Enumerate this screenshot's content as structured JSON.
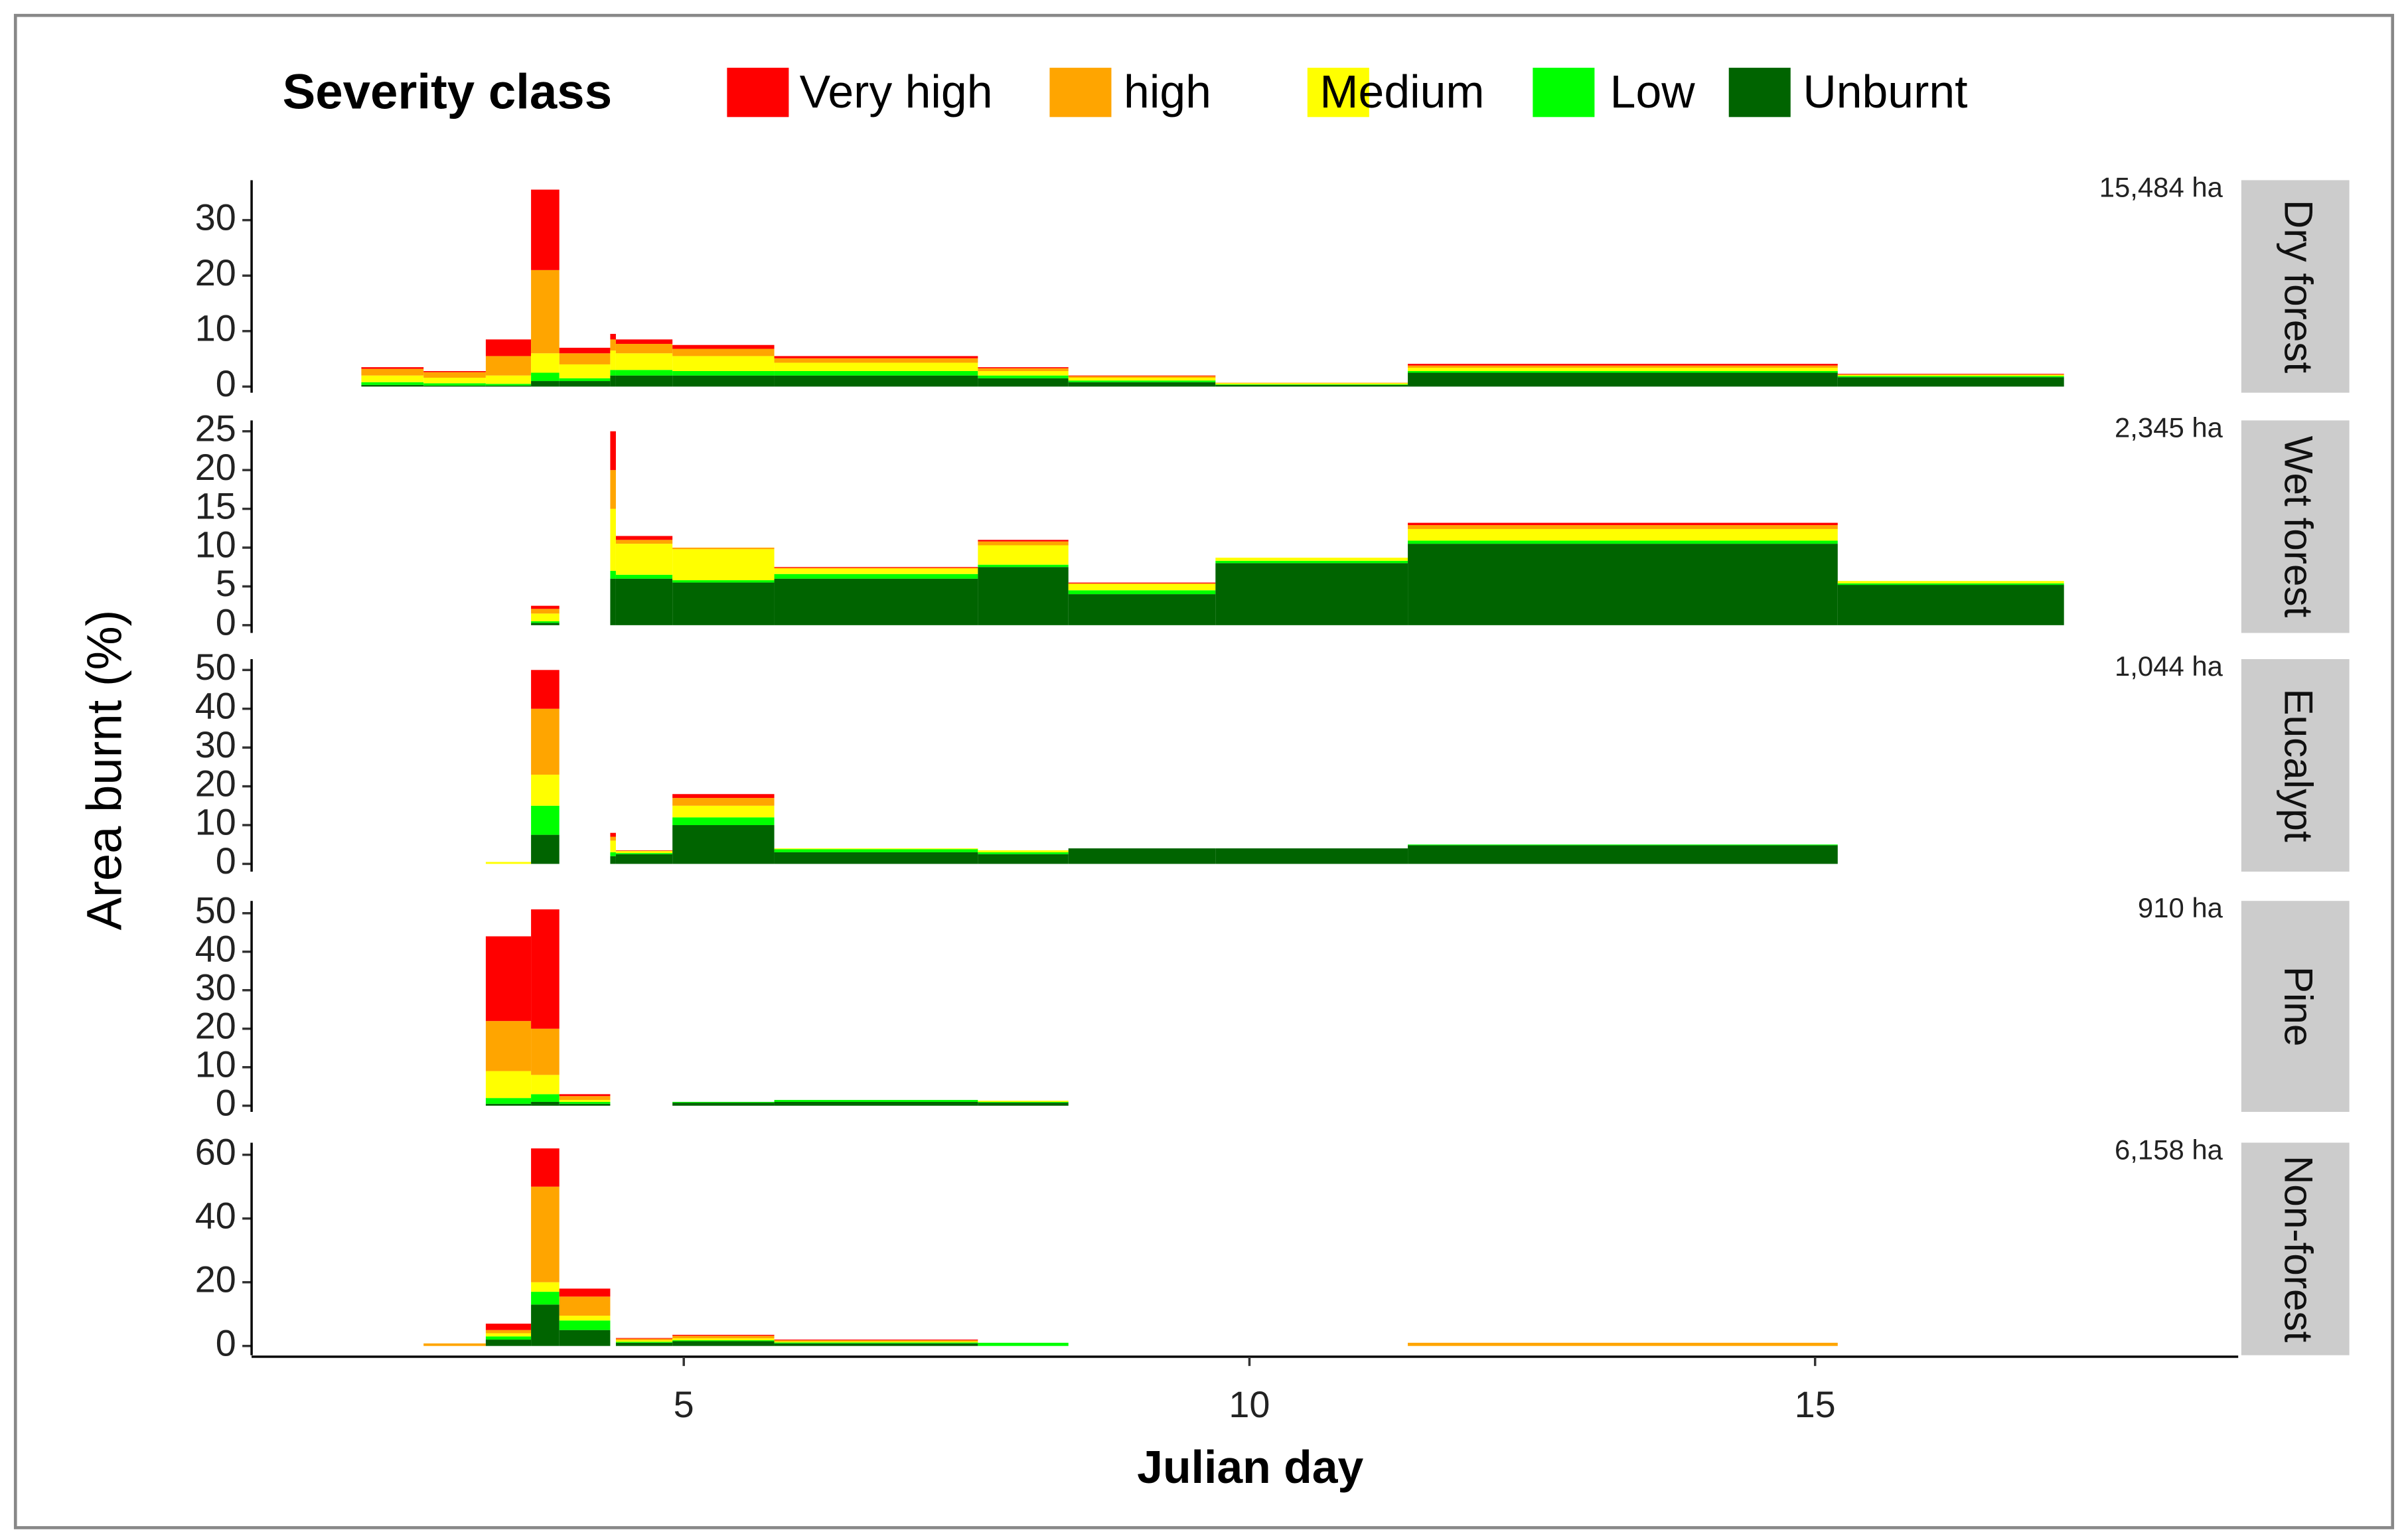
{
  "chart_data": {
    "type": "histogram",
    "legend_title": "Severity class",
    "xlabel": "Julian day",
    "ylabel": "Area burnt (%)",
    "xlim": [
      1.18,
      18.74
    ],
    "xticks": [
      5,
      10,
      15
    ],
    "bins": [
      2.15,
      2.7,
      3.25,
      3.65,
      3.9,
      4.35,
      4.4,
      4.9,
      5.8,
      7.6,
      8.4,
      9.7,
      11.4,
      15.2,
      17.2
    ],
    "series": [
      {
        "name": "Very high",
        "color": "#ff0000"
      },
      {
        "name": "high",
        "color": "#ffa500"
      },
      {
        "name": "Medium",
        "color": "#ffff00"
      },
      {
        "name": "Low",
        "color": "#00ff00"
      },
      {
        "name": "Unburnt",
        "color": "#006400"
      }
    ],
    "facets": [
      {
        "label": "Dry forest",
        "annotation": "15,484 ha",
        "ylim": [
          -1.1,
          37.2
        ],
        "yticks": [
          0,
          10,
          20,
          30
        ],
        "values": [
          [
            0.3,
            0.2,
            3,
            14.5,
            1,
            1,
            0.8,
            0.7,
            0.4,
            0.2,
            0.1,
            0,
            0.3,
            0.1
          ],
          [
            1.2,
            1,
            3.5,
            15,
            2,
            2,
            1.7,
            1.3,
            0.8,
            0.5,
            0.3,
            0.1,
            0.4,
            0.1
          ],
          [
            1.2,
            1,
            1.5,
            3.5,
            2.5,
            3.5,
            3,
            2.7,
            1.5,
            0.8,
            0.5,
            0.2,
            0.6,
            0.2
          ],
          [
            0.5,
            0.4,
            0.3,
            1.5,
            0.5,
            1,
            1,
            0.8,
            0.8,
            0.5,
            0.3,
            0.1,
            0.3,
            0.2
          ],
          [
            0.3,
            0.2,
            0.2,
            1,
            1,
            2,
            2,
            2,
            2,
            1.5,
            0.8,
            0.3,
            2.5,
            1.7
          ]
        ]
      },
      {
        "label": "Wet forest",
        "annotation": "2,345 ha",
        "ylim": [
          -1,
          26.4
        ],
        "yticks": [
          0,
          5,
          10,
          15,
          20,
          25
        ],
        "values": [
          [
            0,
            0,
            0,
            0.4,
            0,
            5,
            0.5,
            0,
            0.1,
            0.2,
            0.1,
            0,
            0.3,
            0
          ],
          [
            0,
            0,
            0,
            0.6,
            0,
            5,
            0.5,
            0.2,
            0.1,
            0.5,
            0.1,
            0,
            0.5,
            0
          ],
          [
            0,
            0,
            0,
            1,
            0,
            8,
            4,
            4,
            0.7,
            2.5,
            0.8,
            0.4,
            1.5,
            0.3
          ],
          [
            0,
            0,
            0,
            0.2,
            0,
            1,
            0.5,
            0.3,
            0.6,
            0.3,
            0.5,
            0.3,
            0.4,
            0.2
          ],
          [
            0,
            0,
            0,
            0.3,
            0,
            6,
            6,
            5.5,
            6,
            7.5,
            4,
            8,
            10.5,
            5.2
          ]
        ]
      },
      {
        "label": "Eucalypt",
        "annotation": "1,044 ha",
        "ylim": [
          -2,
          52.8
        ],
        "yticks": [
          0,
          10,
          20,
          30,
          40,
          50
        ],
        "values": [
          [
            0,
            0,
            0,
            10,
            0,
            1,
            0.1,
            1,
            0,
            0,
            0,
            0,
            0,
            0
          ],
          [
            0,
            0,
            0,
            17,
            0,
            1,
            0.1,
            2,
            0,
            0,
            0,
            0,
            0,
            0
          ],
          [
            0,
            0,
            0.5,
            8,
            0,
            3,
            0.5,
            3,
            0.2,
            0.5,
            0,
            0,
            0,
            0
          ],
          [
            0,
            0,
            0,
            7.5,
            0,
            1,
            0.3,
            2,
            0.8,
            0.5,
            0,
            0,
            0.2,
            0
          ],
          [
            0,
            0,
            0,
            7.5,
            0,
            2,
            2.5,
            10,
            3,
            2.5,
            4,
            4,
            4.8,
            0
          ]
        ]
      },
      {
        "label": "Pine",
        "annotation": "910 ha",
        "ylim": [
          -1.6,
          53.2
        ],
        "yticks": [
          0,
          10,
          20,
          30,
          40,
          50
        ],
        "values": [
          [
            0,
            0,
            22,
            31,
            0.5,
            0,
            0,
            0,
            0,
            0,
            0,
            0,
            0,
            0
          ],
          [
            0,
            0,
            13,
            12,
            1,
            0,
            0,
            0,
            0,
            0,
            0,
            0,
            0,
            0
          ],
          [
            0,
            0,
            7,
            5,
            0.5,
            0,
            0,
            0,
            0,
            0.3,
            0,
            0,
            0,
            0
          ],
          [
            0,
            0,
            1.5,
            2,
            0.5,
            0,
            0,
            0.2,
            0.5,
            0.2,
            0,
            0,
            0,
            0
          ],
          [
            0,
            0,
            0.5,
            1,
            0.5,
            0,
            0,
            0.8,
            1,
            0.8,
            0,
            0,
            0,
            0
          ]
        ]
      },
      {
        "label": "Non-forest",
        "annotation": "6,158 ha",
        "ylim": [
          -2.9,
          63.8
        ],
        "yticks": [
          0,
          20,
          40,
          60
        ],
        "values": [
          [
            0,
            0,
            2,
            12,
            2.5,
            0,
            0.2,
            0.3,
            0.2,
            0,
            0,
            0,
            0,
            0
          ],
          [
            0,
            0.8,
            1,
            30,
            6,
            0,
            0.5,
            0.8,
            0.4,
            0,
            0,
            0,
            1,
            0
          ],
          [
            0,
            0,
            1,
            3,
            1.5,
            0,
            0.5,
            0.6,
            0.3,
            0,
            0,
            0,
            0,
            0
          ],
          [
            0,
            0,
            1,
            4,
            3,
            0,
            0.3,
            0.3,
            0.3,
            1,
            0,
            0,
            0,
            0
          ],
          [
            0,
            0,
            2,
            13,
            5,
            0,
            1,
            1.5,
            0.8,
            0,
            0,
            0,
            0,
            0
          ]
        ]
      }
    ]
  }
}
